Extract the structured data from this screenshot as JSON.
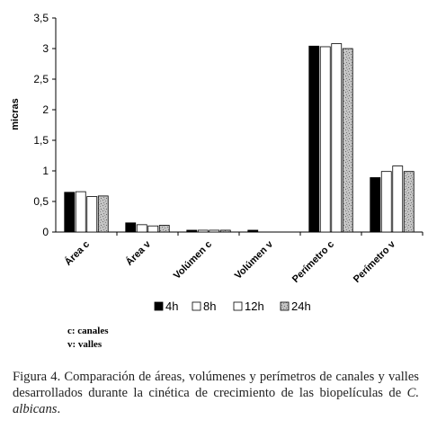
{
  "chart_data": {
    "type": "bar",
    "ylabel": "micras",
    "xlabel": "",
    "ylim": [
      0,
      3.5
    ],
    "yticks": [
      "0",
      "0,5",
      "1",
      "1,5",
      "2",
      "2,5",
      "3",
      "3,5"
    ],
    "categories": [
      "Área c",
      "Área v",
      "Volúmen c",
      "Volúmen v",
      "Perímetro c",
      "Perímetro v"
    ],
    "series": [
      {
        "name": "4h",
        "color": "#000000",
        "pattern": "solid",
        "values": [
          0.65,
          0.15,
          0.03,
          0.03,
          3.04,
          0.89
        ]
      },
      {
        "name": "8h",
        "color": "#ffffff",
        "pattern": "white",
        "values": [
          0.66,
          0.12,
          0.03,
          0,
          3.03,
          0.99
        ]
      },
      {
        "name": "12h",
        "color": "#ffffff",
        "pattern": "white",
        "values": [
          0.58,
          0.1,
          0.03,
          0,
          3.08,
          1.08
        ]
      },
      {
        "name": "24h",
        "color": "#b5b5b5",
        "pattern": "speckled",
        "values": [
          0.59,
          0.11,
          0.03,
          0,
          3.0,
          0.99
        ]
      }
    ],
    "legend_position": "bottom",
    "grid": false
  },
  "notes": [
    "c: canales",
    "v: valles"
  ],
  "caption": {
    "text": "Figura 4. Comparación de áreas, volúmenes y perímetros de canales y valles desarrollados durante la cinética de crecimiento de las biopelículas de",
    "species": "C. albicans",
    "end": "."
  }
}
